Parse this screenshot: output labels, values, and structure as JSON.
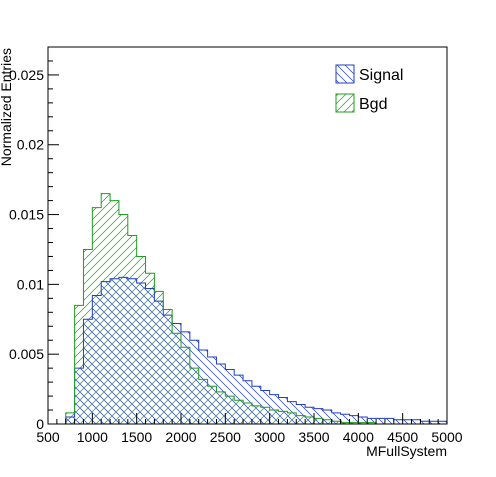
{
  "chart_data": {
    "type": "histogram",
    "xlabel": "MFullSystem",
    "ylabel": "Normalized Entries",
    "xlim": [
      500,
      5000
    ],
    "ylim": [
      0,
      0.027
    ],
    "x_ticks": [
      500,
      1000,
      1500,
      2000,
      2500,
      3000,
      3500,
      4000,
      4500,
      5000
    ],
    "y_ticks": [
      0,
      0.005,
      0.01,
      0.015,
      0.02,
      0.025
    ],
    "x_tick_labels": [
      "500",
      "1000",
      "1500",
      "2000",
      "2500",
      "3000",
      "3500",
      "4000",
      "4500",
      "5000"
    ],
    "y_tick_labels": [
      "0",
      "0.005",
      "0.01",
      "0.015",
      "0.02",
      "0.025"
    ],
    "legend_position": "top-right",
    "grid": false,
    "bin_edges_start": 500,
    "bin_width": 100,
    "series": [
      {
        "name": "Signal",
        "color": "#1f3fc4",
        "fill": "backslash-hatch",
        "values": [
          0.0,
          0.0,
          0.0005,
          0.004,
          0.0075,
          0.0092,
          0.0102,
          0.0104,
          0.0105,
          0.0104,
          0.0101,
          0.0097,
          0.0088,
          0.0078,
          0.0072,
          0.0066,
          0.006,
          0.0053,
          0.0048,
          0.0043,
          0.0039,
          0.0035,
          0.0031,
          0.0027,
          0.0024,
          0.0021,
          0.0019,
          0.0016,
          0.0014,
          0.0012,
          0.0011,
          0.001,
          0.0008,
          0.0007,
          0.0006,
          0.0005,
          0.0004,
          0.0004,
          0.0004,
          0.0003,
          0.0003,
          0.0003,
          0.0002,
          0.0002,
          0.0002
        ]
      },
      {
        "name": "Bgd",
        "color": "#1e9e1e",
        "fill": "slash-hatch",
        "values": [
          0.0,
          0.0,
          0.0008,
          0.0085,
          0.0125,
          0.0155,
          0.0165,
          0.016,
          0.015,
          0.0135,
          0.012,
          0.0108,
          0.0095,
          0.0082,
          0.0065,
          0.0055,
          0.004,
          0.0032,
          0.0027,
          0.0023,
          0.002,
          0.0017,
          0.0015,
          0.0013,
          0.0012,
          0.001,
          0.0009,
          0.0008,
          0.0006,
          0.0005,
          0.0004,
          0.0003,
          0.0002,
          0.0001,
          0.0001,
          0.0001,
          0.0001,
          0.0,
          0.0,
          0.0,
          0.0,
          0.0,
          0.0,
          0.0,
          0.0
        ]
      }
    ]
  },
  "legend": {
    "signal_label": "Signal",
    "bgd_label": "Bgd"
  }
}
